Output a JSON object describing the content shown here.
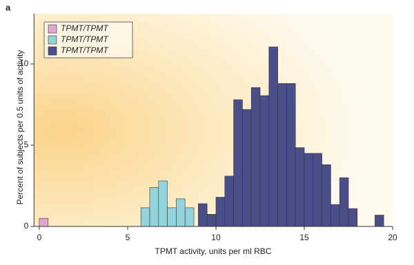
{
  "chart_data": {
    "type": "histogram",
    "panel_label": "a",
    "xlabel": "TPMT activity, units per ml RBC",
    "ylabel": "Percent of subjects per 0.5 units of activity",
    "xlim": [
      -0.3,
      20
    ],
    "ylim": [
      0,
      12.2
    ],
    "xticks": [
      0,
      5,
      10,
      15,
      20
    ],
    "yticks": [
      0,
      5,
      10
    ],
    "legend": "upper left",
    "series": [
      {
        "name": "TPMTL/TPMTL",
        "color": "#e3a6d2",
        "bins": [
          0,
          0.5
        ],
        "values": [
          0.5
        ]
      },
      {
        "name": "TPMTL/TPMTH",
        "color": "#93d4dc",
        "bins": [
          5.75,
          6.25,
          6.75,
          7.25,
          7.75,
          8.25,
          8.75
        ],
        "values": [
          1.15,
          2.4,
          2.8,
          1.15,
          1.7,
          1.15
        ]
      },
      {
        "name": "TPMTH/TPMTH",
        "color": "#4a4f8c",
        "bins": [
          9,
          9.5,
          10,
          10.5,
          11,
          11.5,
          12,
          12.5,
          13,
          13.5,
          14,
          14.5,
          15,
          15.5,
          16,
          16.5,
          17,
          17.5,
          18,
          18.5,
          19,
          19.5
        ],
        "values": [
          1.4,
          0.75,
          1.8,
          3.1,
          7.8,
          7.2,
          8.55,
          8.05,
          11.05,
          8.8,
          8.8,
          4.85,
          4.5,
          4.5,
          3.8,
          1.35,
          3.0,
          1.1,
          0,
          0,
          0.7
        ]
      }
    ]
  }
}
